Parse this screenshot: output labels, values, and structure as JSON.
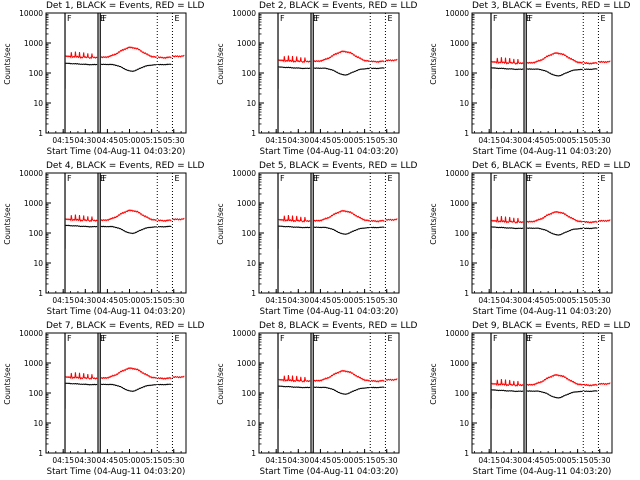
{
  "chart_data": [
    {
      "type": "line",
      "title": "Det 1, BLACK = Events, RED = LLD",
      "xlabel": "Start Time (04-Aug-11 04:03:20)",
      "ylabel": "Counts/sec",
      "y_scale": "log",
      "ylim": [
        1,
        10000
      ],
      "xlim_minutes": [
        0,
        95
      ],
      "yticks": [
        "1",
        "10",
        "100",
        "1000",
        "10000"
      ],
      "xticks": [
        "04:15",
        "04:30",
        "04:45",
        "05:00",
        "05:15",
        "05:30"
      ],
      "markers": [
        "F",
        "E",
        "F",
        "E"
      ],
      "series": [
        {
          "name": "Events",
          "color": "#000000",
          "base": 200,
          "bump": 0.5
        },
        {
          "name": "LLD",
          "color": "#ff0000",
          "base": 340,
          "bump": 0.55
        }
      ]
    },
    {
      "type": "line",
      "title": "Det 2, BLACK = Events, RED = LLD",
      "xlabel": "Start Time (04-Aug-11 04:03:20)",
      "ylabel": "Counts/sec",
      "y_scale": "log",
      "ylim": [
        1,
        10000
      ],
      "xlim_minutes": [
        0,
        95
      ],
      "yticks": [
        "1",
        "10",
        "100",
        "1000",
        "10000"
      ],
      "xticks": [
        "04:15",
        "04:30",
        "04:45",
        "05:00",
        "05:15",
        "05:30"
      ],
      "markers": [
        "F",
        "E",
        "F",
        "E"
      ],
      "series": [
        {
          "name": "Events",
          "color": "#000000",
          "base": 150,
          "bump": 0.5
        },
        {
          "name": "LLD",
          "color": "#ff0000",
          "base": 250,
          "bump": 0.55
        }
      ]
    },
    {
      "type": "line",
      "title": "Det 3, BLACK = Events, RED = LLD",
      "xlabel": "Start Time (04-Aug-11 04:03:20)",
      "ylabel": "Counts/sec",
      "y_scale": "log",
      "ylim": [
        1,
        10000
      ],
      "xlim_minutes": [
        0,
        95
      ],
      "yticks": [
        "1",
        "10",
        "100",
        "1000",
        "10000"
      ],
      "xticks": [
        "04:15",
        "04:30",
        "04:45",
        "05:00",
        "05:15",
        "05:30"
      ],
      "markers": [
        "F",
        "E",
        "F",
        "E"
      ],
      "series": [
        {
          "name": "Events",
          "color": "#000000",
          "base": 140,
          "bump": 0.5
        },
        {
          "name": "LLD",
          "color": "#ff0000",
          "base": 220,
          "bump": 0.55
        }
      ]
    },
    {
      "type": "line",
      "title": "Det 4, BLACK = Events, RED = LLD",
      "xlabel": "Start Time (04-Aug-11 04:03:20)",
      "ylabel": "Counts/sec",
      "y_scale": "log",
      "ylim": [
        1,
        10000
      ],
      "xlim_minutes": [
        0,
        95
      ],
      "yticks": [
        "1",
        "10",
        "100",
        "1000",
        "10000"
      ],
      "xticks": [
        "04:15",
        "04:30",
        "04:45",
        "05:00",
        "05:15",
        "05:30"
      ],
      "markers": [
        "F",
        "E",
        "F",
        "E"
      ],
      "series": [
        {
          "name": "Events",
          "color": "#000000",
          "base": 170,
          "bump": 0.5
        },
        {
          "name": "LLD",
          "color": "#ff0000",
          "base": 270,
          "bump": 0.55
        }
      ]
    },
    {
      "type": "line",
      "title": "Det 5, BLACK = Events, RED = LLD",
      "xlabel": "Start Time (04-Aug-11 04:03:20)",
      "ylabel": "Counts/sec",
      "y_scale": "log",
      "ylim": [
        1,
        10000
      ],
      "xlim_minutes": [
        0,
        95
      ],
      "yticks": [
        "1",
        "10",
        "100",
        "1000",
        "10000"
      ],
      "xticks": [
        "04:15",
        "04:30",
        "04:45",
        "05:00",
        "05:15",
        "05:30"
      ],
      "markers": [
        "F",
        "E",
        "F",
        "E"
      ],
      "series": [
        {
          "name": "Events",
          "color": "#000000",
          "base": 160,
          "bump": 0.5
        },
        {
          "name": "LLD",
          "color": "#ff0000",
          "base": 260,
          "bump": 0.55
        }
      ]
    },
    {
      "type": "line",
      "title": "Det 6, BLACK = Events, RED = LLD",
      "xlabel": "Start Time (04-Aug-11 04:03:20)",
      "ylabel": "Counts/sec",
      "y_scale": "log",
      "ylim": [
        1,
        10000
      ],
      "xlim_minutes": [
        0,
        95
      ],
      "yticks": [
        "1",
        "10",
        "100",
        "1000",
        "10000"
      ],
      "xticks": [
        "04:15",
        "04:30",
        "04:45",
        "05:00",
        "05:15",
        "05:30"
      ],
      "markers": [
        "F",
        "E",
        "F",
        "E"
      ],
      "series": [
        {
          "name": "Events",
          "color": "#000000",
          "base": 150,
          "bump": 0.5
        },
        {
          "name": "LLD",
          "color": "#ff0000",
          "base": 240,
          "bump": 0.55
        }
      ]
    },
    {
      "type": "line",
      "title": "Det 7, BLACK = Events, RED = LLD",
      "xlabel": "Start Time (04-Aug-11 04:03:20)",
      "ylabel": "Counts/sec",
      "y_scale": "log",
      "ylim": [
        1,
        10000
      ],
      "xlim_minutes": [
        0,
        95
      ],
      "yticks": [
        "1",
        "10",
        "100",
        "1000",
        "10000"
      ],
      "xticks": [
        "04:15",
        "04:30",
        "04:45",
        "05:00",
        "05:15",
        "05:30"
      ],
      "markers": [
        "F",
        "E",
        "F",
        "E"
      ],
      "series": [
        {
          "name": "Events",
          "color": "#000000",
          "base": 200,
          "bump": 0.5
        },
        {
          "name": "LLD",
          "color": "#ff0000",
          "base": 320,
          "bump": 0.55
        }
      ]
    },
    {
      "type": "line",
      "title": "Det 8, BLACK = Events, RED = LLD",
      "xlabel": "Start Time (04-Aug-11 04:03:20)",
      "ylabel": "Counts/sec",
      "y_scale": "log",
      "ylim": [
        1,
        10000
      ],
      "xlim_minutes": [
        0,
        95
      ],
      "yticks": [
        "1",
        "10",
        "100",
        "1000",
        "10000"
      ],
      "xticks": [
        "04:15",
        "04:30",
        "04:45",
        "05:00",
        "05:15",
        "05:30"
      ],
      "markers": [
        "F",
        "E",
        "F",
        "E"
      ],
      "series": [
        {
          "name": "Events",
          "color": "#000000",
          "base": 160,
          "bump": 0.5
        },
        {
          "name": "LLD",
          "color": "#ff0000",
          "base": 260,
          "bump": 0.55
        }
      ]
    },
    {
      "type": "line",
      "title": "Det 9, BLACK = Events, RED = LLD",
      "xlabel": "Start Time (04-Aug-11 04:03:20)",
      "ylabel": "Counts/sec",
      "y_scale": "log",
      "ylim": [
        1,
        10000
      ],
      "xlim_minutes": [
        0,
        95
      ],
      "yticks": [
        "1",
        "10",
        "100",
        "1000",
        "10000"
      ],
      "xticks": [
        "04:15",
        "04:30",
        "04:45",
        "05:00",
        "05:15",
        "05:30"
      ],
      "markers": [
        "F",
        "E",
        "F",
        "E"
      ],
      "series": [
        {
          "name": "Events",
          "color": "#000000",
          "base": 120,
          "bump": 0.5
        },
        {
          "name": "LLD",
          "color": "#ff0000",
          "base": 190,
          "bump": 0.55
        }
      ]
    }
  ]
}
